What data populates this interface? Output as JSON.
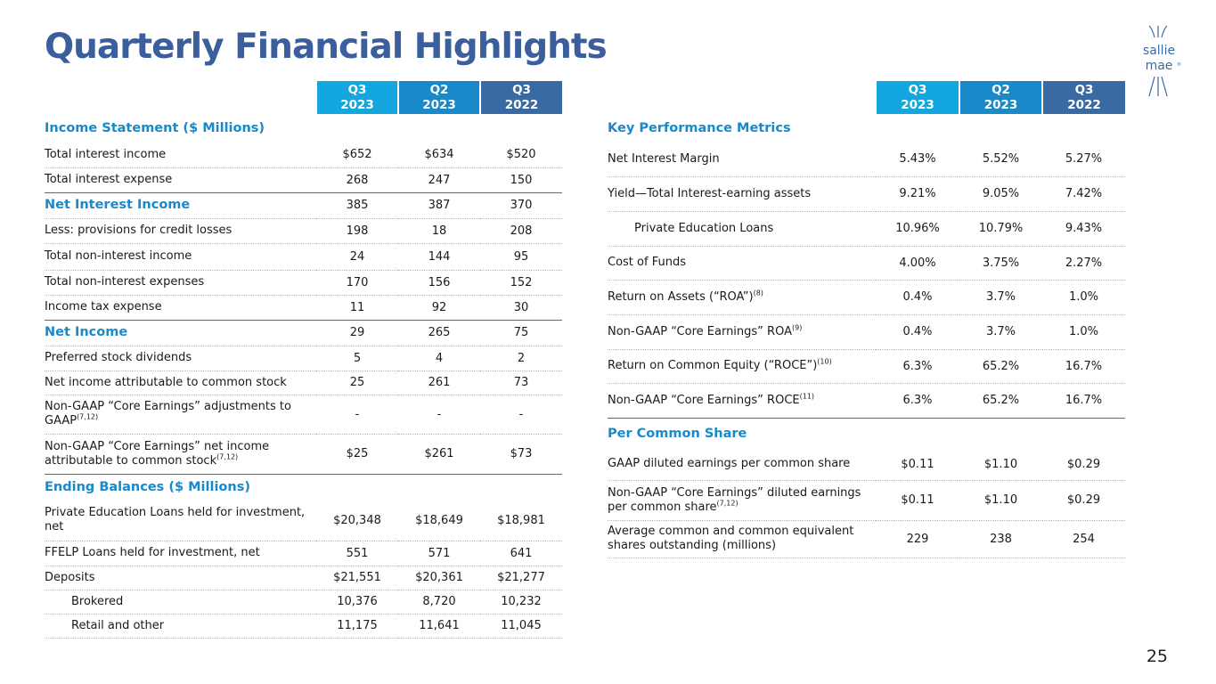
{
  "title": "Quarterly Financial Highlights",
  "logo": {
    "line1": "sallie",
    "line2": "mae",
    "mark": "®"
  },
  "page_number": "25",
  "columns": [
    {
      "q": "Q3",
      "y": "2023"
    },
    {
      "q": "Q2",
      "y": "2023"
    },
    {
      "q": "Q3",
      "y": "2022"
    }
  ],
  "left": {
    "sections": [
      {
        "title": "Income Statement ($ Millions)",
        "rows": [
          {
            "label": "Total interest income",
            "values": [
              "$652",
              "$634",
              "$520"
            ]
          },
          {
            "label": "Total interest expense",
            "values": [
              "268",
              "247",
              "150"
            ]
          },
          {
            "label": "Net Interest Income",
            "values": [
              "385",
              "387",
              "370"
            ],
            "highlight": true
          },
          {
            "label": "Less: provisions for credit losses",
            "values": [
              "198",
              "18",
              "208"
            ]
          },
          {
            "label": "Total non-interest income",
            "values": [
              "24",
              "144",
              "95"
            ]
          },
          {
            "label": "Total non-interest expenses",
            "values": [
              "170",
              "156",
              "152"
            ]
          },
          {
            "label": "Income tax expense",
            "values": [
              "11",
              "92",
              "30"
            ]
          },
          {
            "label": "Net Income",
            "values": [
              "29",
              "265",
              "75"
            ],
            "highlight": true
          },
          {
            "label": "Preferred stock dividends",
            "values": [
              "5",
              "4",
              "2"
            ]
          },
          {
            "label": "Net income attributable to common stock",
            "values": [
              "25",
              "261",
              "73"
            ]
          },
          {
            "label": "Non-GAAP “Core Earnings” adjustments to GAAP",
            "sup": "(7,12)",
            "values": [
              "-",
              "-",
              "-"
            ]
          },
          {
            "label": "Non-GAAP “Core Earnings” net income attributable to common stock",
            "sup": "(7,12)",
            "values": [
              "$25",
              "$261",
              "$73"
            ]
          }
        ]
      },
      {
        "title": "Ending Balances ($ Millions)",
        "rows": [
          {
            "label": "Private Education Loans held for investment, net",
            "values": [
              "$20,348",
              "$18,649",
              "$18,981"
            ]
          },
          {
            "label": "FFELP Loans held for investment, net",
            "values": [
              "551",
              "571",
              "641"
            ]
          },
          {
            "label": "Deposits",
            "values": [
              "$21,551",
              "$20,361",
              "$21,277"
            ]
          },
          {
            "label": "Brokered",
            "values": [
              "10,376",
              "8,720",
              "10,232"
            ],
            "indent": true
          },
          {
            "label": "Retail and other",
            "values": [
              "11,175",
              "11,641",
              "11,045"
            ],
            "indent": true
          }
        ]
      }
    ]
  },
  "right": {
    "sections": [
      {
        "title": "Key Performance Metrics",
        "rows": [
          {
            "label": "Net Interest Margin",
            "values": [
              "5.43%",
              "5.52%",
              "5.27%"
            ]
          },
          {
            "label": "Yield—Total Interest-earning assets",
            "values": [
              "9.21%",
              "9.05%",
              "7.42%"
            ]
          },
          {
            "label": "Private Education Loans",
            "values": [
              "10.96%",
              "10.79%",
              "9.43%"
            ],
            "indent": true
          },
          {
            "label": "Cost of Funds",
            "values": [
              "4.00%",
              "3.75%",
              "2.27%"
            ]
          },
          {
            "label": "Return on Assets (“ROA”)",
            "sup": "(8)",
            "values": [
              "0.4%",
              "3.7%",
              "1.0%"
            ]
          },
          {
            "label": "Non-GAAP “Core Earnings” ROA",
            "sup": "(9)",
            "values": [
              "0.4%",
              "3.7%",
              "1.0%"
            ]
          },
          {
            "label": "Return on Common Equity (“ROCE”)",
            "sup": "(10)",
            "values": [
              "6.3%",
              "65.2%",
              "16.7%"
            ]
          },
          {
            "label": "Non-GAAP “Core Earnings” ROCE",
            "sup": "(11)",
            "values": [
              "6.3%",
              "65.2%",
              "16.7%"
            ]
          }
        ]
      },
      {
        "title": "Per Common Share",
        "rows": [
          {
            "label": "GAAP diluted earnings per common share",
            "values": [
              "$0.11",
              "$1.10",
              "$0.29"
            ]
          },
          {
            "label": "Non-GAAP “Core Earnings” diluted earnings per common share",
            "sup": "(7,12)",
            "values": [
              "$0.11",
              "$1.10",
              "$0.29"
            ]
          },
          {
            "label": "Average common and common equivalent shares outstanding (millions)",
            "values": [
              "229",
              "238",
              "254"
            ]
          }
        ]
      }
    ]
  }
}
